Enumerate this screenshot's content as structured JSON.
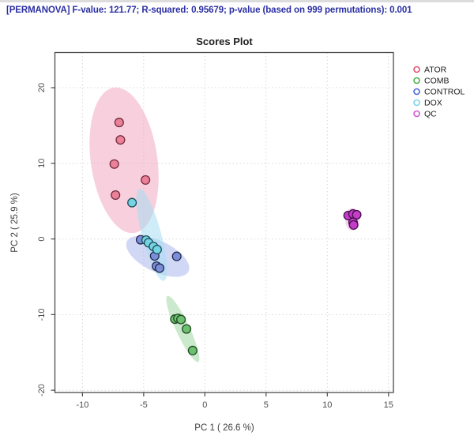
{
  "header": {
    "text": "[PERMANOVA] F-value: 121.77; R-squared: 0.95679; p-value (based on 999 permutations): 0.001"
  },
  "chart_data": {
    "type": "scatter",
    "title": "Scores Plot",
    "xlabel": "PC 1 ( 26.6 %)",
    "ylabel": "PC 2 ( 25.9 %)",
    "xlim": [
      -12.25,
      15.4
    ],
    "ylim": [
      -20.3,
      24.65
    ],
    "xticks": [
      -10,
      -5,
      0,
      5,
      10,
      15
    ],
    "yticks": [
      -20,
      -10,
      0,
      10,
      20
    ],
    "grid": true,
    "grid_style": "dotted",
    "legend_position": "top-right",
    "frame_color": "#4a4a4a",
    "grid_color": "#d8d8d8",
    "series": [
      {
        "name": "ATOR",
        "fill": "#ea8199",
        "stroke": "#73293b",
        "legend_color": "#e05575",
        "points": [
          [
            -7.0,
            15.4
          ],
          [
            -6.9,
            13.1
          ],
          [
            -7.4,
            9.9
          ],
          [
            -4.85,
            7.8
          ],
          [
            -7.3,
            5.8
          ]
        ],
        "ellipse": {
          "cx": -6.6,
          "cy": 10.4,
          "rx": 2.72,
          "ry": 9.7,
          "rot": -8,
          "fill": "#f2a8c0",
          "opacity": 0.55
        }
      },
      {
        "name": "COMB",
        "fill": "#6cc06f",
        "stroke": "#1f4a22",
        "legend_color": "#52b055",
        "points": [
          [
            -2.45,
            -10.6
          ],
          [
            -2.2,
            -10.5
          ],
          [
            -1.95,
            -10.65
          ],
          [
            -1.5,
            -11.9
          ],
          [
            -1.0,
            -14.75
          ]
        ],
        "ellipse": {
          "cx": -1.8,
          "cy": -11.9,
          "rx": 0.55,
          "ry": 4.8,
          "rot": -25,
          "fill": "#97d49a",
          "opacity": 0.5
        }
      },
      {
        "name": "CONTROL",
        "fill": "#7b8ed8",
        "stroke": "#23294e",
        "legend_color": "#4a6cd4",
        "points": [
          [
            -5.25,
            -0.1
          ],
          [
            -4.1,
            -2.25
          ],
          [
            -2.3,
            -2.3
          ],
          [
            -3.95,
            -3.6
          ],
          [
            -3.7,
            -3.85
          ]
        ],
        "ellipse": {
          "cx": -3.85,
          "cy": -2.3,
          "rx": 2.8,
          "ry": 2.05,
          "rot": 26,
          "fill": "#a4b1ec",
          "opacity": 0.5
        }
      },
      {
        "name": "DOX",
        "fill": "#74d4e4",
        "stroke": "#1c4a54",
        "legend_color": "#7cd6e8",
        "points": [
          [
            -5.95,
            4.8
          ],
          [
            -4.8,
            -0.15
          ],
          [
            -4.6,
            -0.5
          ],
          [
            -4.2,
            -1.0
          ],
          [
            -3.9,
            -1.4
          ]
        ],
        "ellipse": {
          "cx": -4.35,
          "cy": 0.55,
          "rx": 0.78,
          "ry": 6.3,
          "rot": -15,
          "fill": "#a6dff2",
          "opacity": 0.55
        }
      },
      {
        "name": "QC",
        "fill": "#c43cc8",
        "stroke": "#43104a",
        "legend_color": "#d059d4",
        "points": [
          [
            11.7,
            3.1
          ],
          [
            12.1,
            3.3
          ],
          [
            12.4,
            3.2
          ],
          [
            12.1,
            2.2
          ],
          [
            12.15,
            1.85
          ]
        ],
        "ellipse": {
          "cx": 12.05,
          "cy": 2.6,
          "rx": 0.6,
          "ry": 1.5,
          "rot": 0,
          "fill": "#f2a8e0",
          "opacity": 0.5
        }
      }
    ]
  }
}
